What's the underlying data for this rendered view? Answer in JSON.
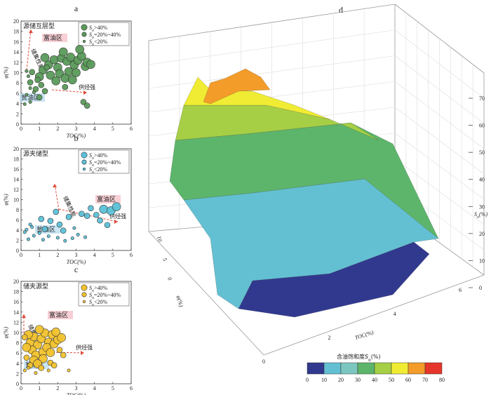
{
  "chart_data": [
    {
      "panel": "a",
      "type": "scatter",
      "title": "源储互层型",
      "xlabel": "TOC(%)",
      "ylabel": "φ(%)",
      "xlim": [
        0,
        6
      ],
      "ylim": [
        0,
        20
      ],
      "xticks": [
        "0",
        "1",
        "2",
        "3",
        "4",
        "5",
        "6"
      ],
      "yticks": [
        "0",
        "2",
        "4",
        "6",
        "8",
        "10",
        "12",
        "14",
        "16",
        "18",
        "20"
      ],
      "legend": [
        "S_o>40%",
        "S_o=20%~40%",
        "S_o<20%"
      ],
      "legend_subscript": "o",
      "marker_color": "#5a9a5a",
      "annotations": [
        "富油区",
        "贫油区",
        "储集性能",
        "供烃强"
      ],
      "series": [
        {
          "name": "S_o>40%",
          "points": [
            [
              1.2,
              10.5
            ],
            [
              1.5,
              11.5
            ],
            [
              1.8,
              12.5
            ],
            [
              2.0,
              11.0
            ],
            [
              2.2,
              12.8
            ],
            [
              2.5,
              12.2
            ],
            [
              2.7,
              13.0
            ],
            [
              2.9,
              11.5
            ],
            [
              3.1,
              12.4
            ],
            [
              3.3,
              13.2
            ],
            [
              3.5,
              11.2
            ],
            [
              1.6,
              9.5
            ],
            [
              2.1,
              9.8
            ],
            [
              2.6,
              10.2
            ],
            [
              3.0,
              10.0
            ],
            [
              1.9,
              8.4
            ],
            [
              2.4,
              8.9
            ],
            [
              3.6,
              12.0
            ],
            [
              1.3,
              12.9
            ],
            [
              2.8,
              8.6
            ],
            [
              3.8,
              11.6
            ],
            [
              1.0,
              9.2
            ],
            [
              2.3,
              14.0
            ],
            [
              3.2,
              14.5
            ]
          ]
        },
        {
          "name": "S_o=20%~40%",
          "points": [
            [
              0.6,
              10.1
            ],
            [
              0.9,
              8.6
            ],
            [
              1.1,
              7.6
            ],
            [
              0.8,
              6.8
            ],
            [
              1.3,
              6.4
            ],
            [
              1.0,
              5.2
            ],
            [
              2.4,
              7.2
            ],
            [
              3.4,
              4.3
            ],
            [
              3.6,
              3.6
            ],
            [
              0.5,
              8.1
            ],
            [
              1.4,
              11.0
            ]
          ]
        },
        {
          "name": "S_o<20%",
          "points": [
            [
              0.3,
              5.7
            ],
            [
              0.5,
              4.3
            ],
            [
              0.2,
              3.9
            ],
            [
              0.4,
              9.3
            ],
            [
              0.3,
              10.3
            ],
            [
              0.7,
              6.2
            ],
            [
              0.5,
              7.0
            ]
          ]
        }
      ]
    },
    {
      "panel": "b",
      "type": "scatter",
      "title": "源夹储型",
      "xlabel": "TOC(%)",
      "ylabel": "φ(%)",
      "xlim": [
        0,
        6
      ],
      "ylim": [
        0,
        20
      ],
      "xticks": [
        "0",
        "1",
        "2",
        "3",
        "4",
        "5",
        "6"
      ],
      "yticks": [
        "0",
        "2",
        "4",
        "6",
        "8",
        "10",
        "12",
        "14",
        "16",
        "18",
        "20"
      ],
      "legend": [
        "S_o>40%",
        "S_o=20%~40%",
        "S_o<20%"
      ],
      "legend_subscript": "o",
      "marker_color": "#5bc0d8",
      "annotations": [
        "富油区",
        "贫油区",
        "储集性能",
        "供烃强"
      ],
      "series": [
        {
          "name": "S_o>40%",
          "points": [
            [
              4.5,
              8.1
            ],
            [
              4.9,
              7.8
            ],
            [
              5.2,
              8.6
            ]
          ]
        },
        {
          "name": "S_o=20%~40%",
          "points": [
            [
              1.1,
              6.2
            ],
            [
              1.6,
              5.8
            ],
            [
              2.1,
              5.1
            ],
            [
              2.6,
              6.6
            ],
            [
              3.3,
              7.2
            ],
            [
              3.6,
              6.8
            ],
            [
              1.3,
              4.2
            ],
            [
              2.3,
              3.9
            ],
            [
              4.1,
              7.0
            ],
            [
              4.3,
              5.9
            ],
            [
              1.9,
              7.6
            ],
            [
              3.8,
              8.3
            ],
            [
              4.7,
              5.0
            ]
          ]
        },
        {
          "name": "S_o<20%",
          "points": [
            [
              0.3,
              4.1
            ],
            [
              0.5,
              5.1
            ],
            [
              0.7,
              2.9
            ],
            [
              0.4,
              2.2
            ],
            [
              1.0,
              3.4
            ],
            [
              1.5,
              2.8
            ],
            [
              2.0,
              2.5
            ],
            [
              2.4,
              1.9
            ],
            [
              2.8,
              2.4
            ],
            [
              3.1,
              3.1
            ],
            [
              0.6,
              4.6
            ],
            [
              0.2,
              3.6
            ],
            [
              1.2,
              2.1
            ],
            [
              2.9,
              4.4
            ],
            [
              3.5,
              2.6
            ]
          ]
        }
      ]
    },
    {
      "panel": "c",
      "type": "scatter",
      "title": "储夹源型",
      "xlabel": "TOC(%)",
      "ylabel": "φ(%)",
      "xlim": [
        0,
        6
      ],
      "ylim": [
        0,
        20
      ],
      "xticks": [
        "0",
        "1",
        "2",
        "3",
        "4",
        "5",
        "6"
      ],
      "yticks": [
        "0",
        "2",
        "4",
        "6",
        "8",
        "10",
        "12",
        "14",
        "16",
        "18",
        "20"
      ],
      "legend": [
        "S_o>40%",
        "S_o=20%~40%",
        "S_o<20%"
      ],
      "legend_subscript": "o",
      "marker_color": "#f2c22e",
      "annotations": [
        "富油区",
        "贫油区",
        "储集性能",
        "供烃强"
      ],
      "series": [
        {
          "name": "S_o>40%",
          "points": [
            [
              0.5,
              8.0
            ],
            [
              0.7,
              9.2
            ],
            [
              0.9,
              7.6
            ],
            [
              1.1,
              8.8
            ],
            [
              1.3,
              9.9
            ],
            [
              1.5,
              8.1
            ],
            [
              0.6,
              6.6
            ],
            [
              0.8,
              5.6
            ],
            [
              1.2,
              6.2
            ],
            [
              1.4,
              7.1
            ],
            [
              1.7,
              9.6
            ],
            [
              0.4,
              9.6
            ],
            [
              1.0,
              10.6
            ],
            [
              1.8,
              7.8
            ],
            [
              0.7,
              4.6
            ],
            [
              1.2,
              4.9
            ],
            [
              1.6,
              6.1
            ],
            [
              2.0,
              8.6
            ],
            [
              0.3,
              7.1
            ],
            [
              1.9,
              10.1
            ],
            [
              0.9,
              3.9
            ],
            [
              2.2,
              9.0
            ]
          ]
        },
        {
          "name": "S_o=20%~40%",
          "points": [
            [
              0.3,
              5.1
            ],
            [
              0.5,
              3.6
            ],
            [
              1.1,
              3.1
            ],
            [
              1.6,
              4.1
            ],
            [
              2.1,
              6.6
            ],
            [
              2.3,
              5.6
            ],
            [
              0.2,
              9.1
            ],
            [
              1.8,
              3.6
            ]
          ]
        },
        {
          "name": "S_o<20%",
          "points": [
            [
              0.2,
              2.6
            ],
            [
              0.4,
              3.1
            ],
            [
              2.6,
              2.6
            ],
            [
              0.8,
              2.1
            ],
            [
              1.5,
              2.6
            ]
          ]
        }
      ]
    },
    {
      "panel": "d",
      "type": "surface3d",
      "xlabel": "TOC(%)",
      "ylabel": "φ(%)",
      "zlabel": "S_o(%)",
      "xticks": [
        "0",
        "2",
        "4",
        "6"
      ],
      "yticks": [
        "0",
        "5",
        "10"
      ],
      "zticks": [
        "0",
        "10",
        "20",
        "30",
        "40",
        "50",
        "60",
        "70"
      ],
      "colorbar_title": "含油饱和度S_o(%)",
      "colorbar_ticks": [
        "0",
        "10",
        "20",
        "30",
        "40",
        "50",
        "60",
        "70",
        "80"
      ],
      "colorbar_colors": [
        "#31398f",
        "#63c0d2",
        "#7cc6c0",
        "#5db56b",
        "#a6cf45",
        "#f0ec33",
        "#f39c2a",
        "#e6352a"
      ]
    }
  ]
}
